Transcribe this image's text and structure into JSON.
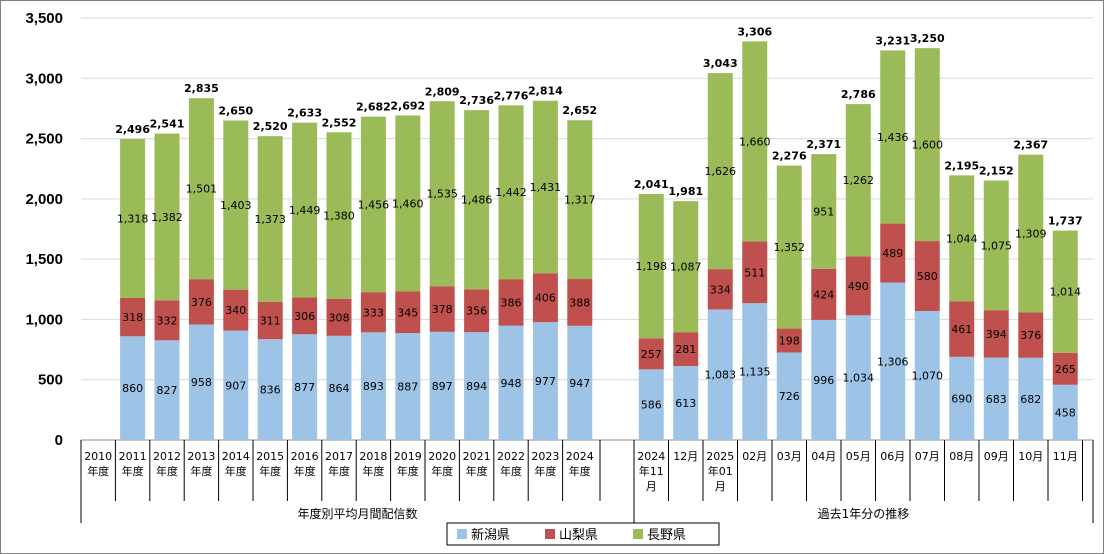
{
  "chart_data": {
    "type": "bar",
    "stacked": true,
    "ylim": [
      0,
      3500
    ],
    "yticks": [
      "0",
      "500",
      "1,000",
      "1,500",
      "2,000",
      "2,500",
      "3,000",
      "3,500"
    ],
    "ytick_values": [
      0,
      500,
      1000,
      1500,
      2000,
      2500,
      3000,
      3500
    ],
    "grid": true,
    "legend_position": "bottom",
    "categories": [
      [
        "2010",
        "年度"
      ],
      [
        "2011",
        "年度"
      ],
      [
        "2012",
        "年度"
      ],
      [
        "2013",
        "年度"
      ],
      [
        "2014",
        "年度"
      ],
      [
        "2015",
        "年度"
      ],
      [
        "2016",
        "年度"
      ],
      [
        "2017",
        "年度"
      ],
      [
        "2018",
        "年度"
      ],
      [
        "2019",
        "年度"
      ],
      [
        "2020",
        "年度"
      ],
      [
        "2021",
        "年度"
      ],
      [
        "2022",
        "年度"
      ],
      [
        "2023",
        "年度"
      ],
      [
        "2024",
        "年度"
      ],
      [
        "2024",
        "年11",
        "月"
      ],
      [
        "12月"
      ],
      [
        "2025",
        "年01",
        "月"
      ],
      [
        "02月"
      ],
      [
        "03月"
      ],
      [
        "04月"
      ],
      [
        "05月"
      ],
      [
        "06月"
      ],
      [
        "07月"
      ],
      [
        "08月"
      ],
      [
        "09月"
      ],
      [
        "10月"
      ],
      [
        "11月"
      ]
    ],
    "groups": [
      {
        "label": "年度別平均月間配信数",
        "start": 0,
        "end": 14
      },
      {
        "label": "過去1年分の推移",
        "start": 15,
        "end": 27
      }
    ],
    "series": [
      {
        "name": "新潟県",
        "color": "#9dc3e6",
        "values": [
          null,
          860,
          827,
          958,
          907,
          836,
          877,
          864,
          893,
          887,
          897,
          894,
          948,
          977,
          947,
          586,
          613,
          1083,
          1135,
          726,
          996,
          1034,
          1306,
          1070,
          690,
          683,
          682,
          458
        ],
        "labels": [
          "",
          "860",
          "827",
          "958",
          "907",
          "836",
          "877",
          "864",
          "893",
          "887",
          "897",
          "894",
          "948",
          "977",
          "947",
          "586",
          "613",
          "1,083",
          "1,135",
          "726",
          "996",
          "1,034",
          "1,306",
          "1,070",
          "690",
          "683",
          "682",
          "458"
        ]
      },
      {
        "name": "山梨県",
        "color": "#c0504d",
        "values": [
          null,
          318,
          332,
          376,
          340,
          311,
          306,
          308,
          333,
          345,
          378,
          356,
          386,
          406,
          388,
          257,
          281,
          334,
          511,
          198,
          424,
          490,
          489,
          580,
          461,
          394,
          376,
          265
        ],
        "labels": [
          "",
          "318",
          "332",
          "376",
          "340",
          "311",
          "306",
          "308",
          "333",
          "345",
          "378",
          "356",
          "386",
          "406",
          "388",
          "257",
          "281",
          "334",
          "511",
          "198",
          "424",
          "490",
          "489",
          "580",
          "461",
          "394",
          "376",
          "265"
        ]
      },
      {
        "name": "長野県",
        "color": "#9bbb59",
        "values": [
          null,
          1318,
          1382,
          1501,
          1403,
          1373,
          1449,
          1380,
          1456,
          1460,
          1535,
          1486,
          1442,
          1431,
          1317,
          1198,
          1087,
          1626,
          1660,
          1352,
          951,
          1262,
          1436,
          1600,
          1044,
          1075,
          1309,
          1014
        ],
        "labels": [
          "",
          "1,318",
          "1,382",
          "1,501",
          "1,403",
          "1,373",
          "1,449",
          "1,380",
          "1,456",
          "1,460",
          "1,535",
          "1,486",
          "1,442",
          "1,431",
          "1,317",
          "1,198",
          "1,087",
          "1,626",
          "1,660",
          "1,352",
          "951",
          "1,262",
          "1,436",
          "1,600",
          "1,044",
          "1,075",
          "1,309",
          "1,014"
        ]
      }
    ],
    "totals": [
      "",
      "2,496",
      "2,541",
      "2,835",
      "2,650",
      "2,520",
      "2,633",
      "2,552",
      "2,682",
      "2,692",
      "2,809",
      "2,736",
      "2,776",
      "2,814",
      "2,652",
      "2,041",
      "1,981",
      "3,043",
      "3,306",
      "2,276",
      "2,371",
      "2,786",
      "3,231",
      "3,250",
      "2,195",
      "2,152",
      "2,367",
      "1,737"
    ],
    "total_values": [
      null,
      2496,
      2541,
      2835,
      2650,
      2520,
      2633,
      2552,
      2682,
      2692,
      2809,
      2736,
      2776,
      2814,
      2652,
      2041,
      1981,
      3043,
      3306,
      2276,
      2371,
      2786,
      3231,
      3250,
      2195,
      2152,
      2367,
      1737
    ],
    "gridline_color": "#d9d9d9"
  }
}
